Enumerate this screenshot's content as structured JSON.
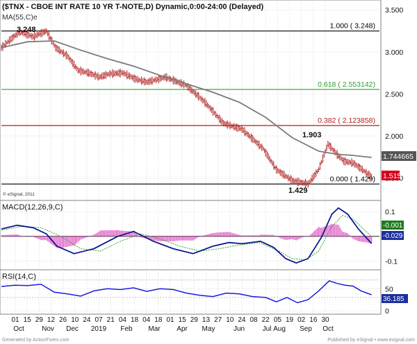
{
  "colors": {
    "background": "#ffffff",
    "grid": "#d9d9d9",
    "frame": "#808080",
    "price_bar": "#b01f1f",
    "ma": "#7a7a7a",
    "fib_100": "#000000",
    "fib_618": "#2e9e2e",
    "fib_382": "#b01f1f",
    "fib_000": "#000000",
    "macd": "#0b1a8c",
    "macd_signal": "#2e9e2e",
    "histogram": "#e14fc4",
    "rsi": "#1a1ae0",
    "badge_ma": "#555555",
    "badge_price": "#d9001b",
    "badge_blue": "#1c2fa0",
    "badge_green": "#1f7a1f"
  },
  "price_panel": {
    "title": "($TNX - CBOE INT RATE 10 YR T-NOTE,D) Dynamic,0:00-24:00 (Delayed)",
    "ma_label": "MA(55,C)e",
    "copyright": "© eSignal, 2011",
    "y_ticks": [
      "3.500",
      "3.000",
      "2.500",
      "2.000",
      "1.500"
    ],
    "y_tick_values": [
      3.5,
      3.0,
      2.5,
      2.0,
      1.5
    ],
    "y_range": [
      1.25,
      3.6
    ],
    "peak_label": "3.248",
    "trough_label": "1.429",
    "rebound_label": "1.903",
    "badge_ma": "1.744665",
    "badge_price": "1.515",
    "fib_levels": [
      {
        "label": "1.000 ( 3.248)",
        "value": 3.248,
        "color_key": "fib_100"
      },
      {
        "label": "0.618 ( 2.553142)",
        "value": 2.553142,
        "color_key": "fib_618"
      },
      {
        "label": "0.382 ( 2.123858)",
        "value": 2.123858,
        "color_key": "fib_382"
      },
      {
        "label": "0.000 ( 1.429)",
        "value": 1.429,
        "color_key": "fib_000"
      }
    ]
  },
  "macd_panel": {
    "title": "MACD(12,26,9,C)",
    "y_ticks": [
      "0.1",
      "-0.1"
    ],
    "y_tick_values": [
      0.1,
      -0.1
    ],
    "y_range": [
      -0.13,
      0.14
    ],
    "badge_signal": "-0.001",
    "badge_macd": "-0.029"
  },
  "rsi_panel": {
    "title": "RSI(14,C)",
    "y_ticks": [
      "50",
      "0"
    ],
    "y_tick_values": [
      50,
      0
    ],
    "y_range": [
      -5,
      90
    ],
    "badge_rsi": "36.185"
  },
  "x_axis": {
    "day_ticks": [
      "01",
      "15",
      "29",
      "12",
      "26",
      "10",
      "24",
      "07",
      "21",
      "04",
      "18",
      "04",
      "18",
      "01",
      "15",
      "29",
      "13",
      "27",
      "10",
      "24",
      "08",
      "22",
      "05",
      "19",
      "02",
      "16",
      "30"
    ],
    "month_labels": [
      "Oct",
      "Nov",
      "Dec",
      "2019",
      "Feb",
      "Mar",
      "Apr",
      "May",
      "Jun",
      "Jul",
      "Aug",
      "Sep",
      "Oct"
    ]
  },
  "footer": {
    "left_text": "Generated by ActionForex.com",
    "right_text": "Published by eSignal • www.esignal.com"
  },
  "chart_data": [
    {
      "type": "line",
      "title": "($TNX - CBOE INT RATE 10 YR T-NOTE,D) Dynamic,0:00-24:00 (Delayed)",
      "x_unit": "trading-day index (0 = 2018-10-01, 280 = 2019-10-04)",
      "series": [
        {
          "name": "$TNX",
          "x": [
            0,
            7,
            14,
            24,
            34,
            41,
            50,
            58,
            66,
            74,
            82,
            92,
            101,
            110,
            124,
            140,
            154,
            168,
            182,
            198,
            208,
            220,
            232,
            240,
            247,
            254,
            259,
            266,
            273,
            280
          ],
          "values": [
            3.05,
            3.15,
            3.24,
            3.18,
            3.248,
            3.05,
            2.95,
            2.78,
            2.75,
            2.7,
            2.74,
            2.75,
            2.68,
            2.64,
            2.7,
            2.6,
            2.4,
            2.15,
            2.08,
            1.85,
            1.6,
            1.47,
            1.429,
            1.6,
            1.903,
            1.78,
            1.7,
            1.68,
            1.6,
            1.515
          ]
        },
        {
          "name": "MA(55,C)e",
          "x": [
            0,
            20,
            40,
            60,
            80,
            100,
            120,
            140,
            160,
            180,
            200,
            220,
            240,
            255,
            265,
            280
          ],
          "values": [
            3.05,
            3.12,
            3.13,
            3.02,
            2.92,
            2.83,
            2.72,
            2.62,
            2.52,
            2.4,
            2.22,
            1.98,
            1.82,
            1.78,
            1.77,
            1.744665
          ]
        }
      ],
      "fib_levels": [
        3.248,
        2.553142,
        2.123858,
        1.429
      ],
      "annotations": [
        "3.248",
        "1.903",
        "1.429"
      ],
      "ylim": [
        1.25,
        3.6
      ]
    },
    {
      "type": "line",
      "title": "MACD(12,26,9,C)",
      "x_unit": "trading-day index",
      "series": [
        {
          "name": "MACD",
          "x": [
            0,
            12,
            24,
            34,
            42,
            55,
            70,
            88,
            100,
            115,
            130,
            145,
            160,
            172,
            182,
            196,
            206,
            215,
            223,
            232,
            242,
            250,
            255,
            262,
            270,
            280
          ],
          "values": [
            0.03,
            0.045,
            0.035,
            0.01,
            -0.04,
            -0.07,
            -0.05,
            0.0,
            0.02,
            -0.02,
            -0.05,
            -0.07,
            -0.04,
            -0.025,
            -0.03,
            -0.02,
            -0.045,
            -0.09,
            -0.108,
            -0.09,
            -0.005,
            0.09,
            0.115,
            0.09,
            0.03,
            -0.029
          ]
        },
        {
          "name": "Signal",
          "x": [
            0,
            15,
            30,
            45,
            60,
            75,
            90,
            105,
            120,
            135,
            150,
            165,
            180,
            195,
            210,
            220,
            230,
            240,
            250,
            258,
            266,
            280
          ],
          "values": [
            0.025,
            0.04,
            0.035,
            0.0,
            -0.05,
            -0.06,
            -0.02,
            0.01,
            -0.01,
            -0.04,
            -0.06,
            -0.05,
            -0.035,
            -0.025,
            -0.06,
            -0.09,
            -0.095,
            -0.06,
            0.04,
            0.085,
            0.07,
            -0.001
          ]
        }
      ],
      "ylim": [
        -0.13,
        0.14
      ]
    },
    {
      "type": "line",
      "title": "RSI(14,C)",
      "x_unit": "trading-day index",
      "series": [
        {
          "name": "RSI",
          "x": [
            0,
            10,
            20,
            30,
            40,
            50,
            60,
            70,
            80,
            90,
            100,
            110,
            120,
            130,
            140,
            150,
            160,
            170,
            180,
            190,
            200,
            208,
            216,
            224,
            232,
            240,
            248,
            254,
            260,
            266,
            272,
            280
          ],
          "values": [
            55,
            58,
            57,
            60,
            42,
            38,
            33,
            45,
            50,
            48,
            52,
            44,
            50,
            48,
            40,
            35,
            32,
            40,
            38,
            32,
            30,
            20,
            30,
            18,
            25,
            45,
            68,
            62,
            58,
            56,
            45,
            36.185
          ]
        }
      ],
      "ylim": [
        -5,
        90
      ]
    }
  ]
}
